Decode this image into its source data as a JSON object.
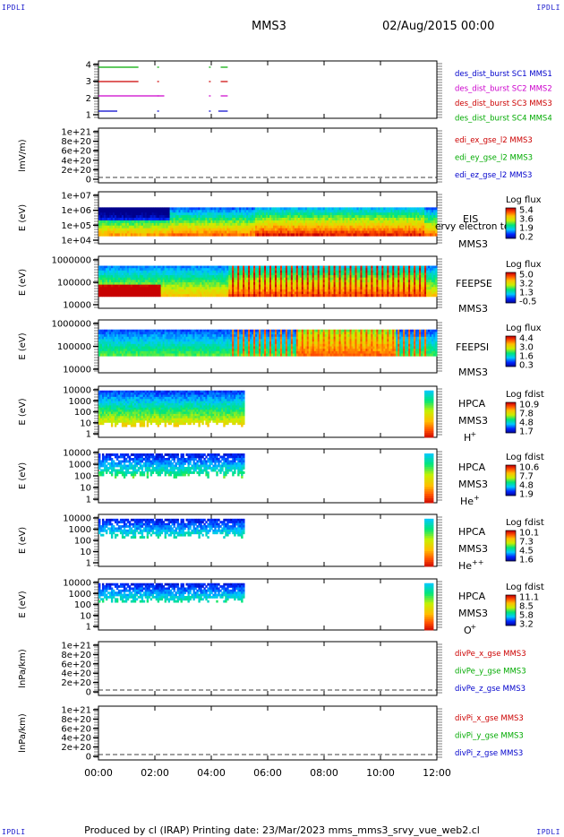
{
  "header": {
    "corner_label": "IPDLI",
    "spacecraft": "MMS3",
    "date": "02/Aug/2015 00:00"
  },
  "footer": {
    "text": "Produced by cl (IRAP)   Printing date: 23/Mar/2023   mms_mms3_srvy_vue_web2.cl"
  },
  "x_axis": {
    "ticks": [
      "00:00",
      "02:00",
      "04:00",
      "06:00",
      "08:00",
      "10:00",
      "12:00"
    ]
  },
  "panels": [
    {
      "id": "burst",
      "yticks": [
        "4",
        "3",
        "2",
        "1"
      ],
      "labels": [
        {
          "text": "des_dist_burst SC1 MMS1",
          "color": "#0000cc"
        },
        {
          "text": "des_dist_burst SC2 MMS2",
          "color": "#cc00cc"
        },
        {
          "text": "des_dist_burst SC3 MMS3",
          "color": "#cc0000"
        },
        {
          "text": "des_dist_burst SC4 MMS4",
          "color": "#00aa00"
        }
      ]
    },
    {
      "id": "efield",
      "ylabel": "lmV/m)",
      "yticks": [
        "1e+21",
        "8e+20",
        "6e+20",
        "4e+20",
        "2e+20",
        "0"
      ],
      "labels": [
        {
          "text": "edi_ex_gse_l2 MMS3",
          "color": "#cc0000"
        },
        {
          "text": "edi_ey_gse_l2 MMS3",
          "color": "#00aa00"
        },
        {
          "text": "edi_ez_gse_l2 MMS3",
          "color": "#0000cc"
        }
      ]
    },
    {
      "id": "eis",
      "ylabel": "E (eV)",
      "yticks": [
        "1e+07",
        "1e+06",
        "1e+05",
        "1e+04"
      ],
      "instrument": "EIS",
      "extra": "ervy electron tot",
      "sc": "MMS3",
      "cb_title": "Log flux",
      "cb_ticks": [
        "5.4",
        "3.6",
        "1.9",
        "0.2"
      ]
    },
    {
      "id": "feepse",
      "ylabel": "E (eV)",
      "yticks": [
        "1000000",
        "100000",
        "10000"
      ],
      "instrument": "FEEPSE",
      "sc": "MMS3",
      "cb_title": "Log flux",
      "cb_ticks": [
        "5.0",
        "3.2",
        "1.3",
        "-0.5"
      ]
    },
    {
      "id": "feepsi",
      "ylabel": "E (eV)",
      "yticks": [
        "1000000",
        "100000",
        "10000"
      ],
      "instrument": "FEEPSI",
      "sc": "MMS3",
      "cb_title": "Log flux",
      "cb_ticks": [
        "4.4",
        "3.0",
        "1.6",
        "0.3"
      ]
    },
    {
      "id": "hpca_h",
      "ylabel": "E (eV)",
      "yticks": [
        "10000",
        "1000",
        "100",
        "10",
        "1"
      ],
      "instrument": "HPCA",
      "sc": "MMS3",
      "species": "H",
      "charge": "+",
      "cb_title": "Log fdist",
      "cb_ticks": [
        "10.9",
        "7.8",
        "4.8",
        "1.7"
      ]
    },
    {
      "id": "hpca_he",
      "ylabel": "E (eV)",
      "yticks": [
        "10000",
        "1000",
        "100",
        "10",
        "1"
      ],
      "instrument": "HPCA",
      "sc": "MMS3",
      "species": "He",
      "charge": "+",
      "cb_title": "Log fdist",
      "cb_ticks": [
        "10.6",
        "7.7",
        "4.8",
        "1.9"
      ]
    },
    {
      "id": "hpca_hepp",
      "ylabel": "E (eV)",
      "yticks": [
        "10000",
        "1000",
        "100",
        "10",
        "1"
      ],
      "instrument": "HPCA",
      "sc": "MMS3",
      "species": "He",
      "charge": "++",
      "cb_title": "Log fdist",
      "cb_ticks": [
        "10.1",
        "7.3",
        "4.5",
        "1.6"
      ]
    },
    {
      "id": "hpca_o",
      "ylabel": "E (eV)",
      "yticks": [
        "10000",
        "1000",
        "100",
        "10",
        "1"
      ],
      "instrument": "HPCA",
      "sc": "MMS3",
      "species": "O",
      "charge": "+",
      "cb_title": "Log fdist",
      "cb_ticks": [
        "11.1",
        "8.5",
        "5.8",
        "3.2"
      ]
    },
    {
      "id": "divpe",
      "ylabel": "lnPa/km)",
      "yticks": [
        "1e+21",
        "8e+20",
        "6e+20",
        "4e+20",
        "2e+20",
        "0"
      ],
      "labels": [
        {
          "text": "divPe_x_gse MMS3",
          "color": "#cc0000"
        },
        {
          "text": "divPe_y_gse MMS3",
          "color": "#00aa00"
        },
        {
          "text": "divPe_z_gse MMS3",
          "color": "#0000cc"
        }
      ]
    },
    {
      "id": "divpi",
      "ylabel": "lnPa/km)",
      "yticks": [
        "1e+21",
        "8e+20",
        "6e+20",
        "4e+20",
        "2e+20",
        "0"
      ],
      "labels": [
        {
          "text": "divPi_x_gse MMS3",
          "color": "#cc0000"
        },
        {
          "text": "divPi_y_gse MMS3",
          "color": "#00aa00"
        },
        {
          "text": "divPi_z_gse MMS3",
          "color": "#0000cc"
        }
      ]
    }
  ],
  "chart_data": {
    "type": "heatmap",
    "title": "MMS3",
    "x_range": [
      "00:00",
      "12:00"
    ],
    "x_ticks": [
      "00:00",
      "02:00",
      "04:00",
      "06:00",
      "08:00",
      "10:00",
      "12:00"
    ],
    "burst_intervals": [
      {
        "sc": 1,
        "color": "#0000cc",
        "segments": [
          [
            "00:00",
            "00:40"
          ],
          [
            "02:05",
            "02:07"
          ],
          [
            "03:55",
            "03:57"
          ],
          [
            "04:15",
            "04:35"
          ]
        ]
      },
      {
        "sc": 2,
        "color": "#cc00cc",
        "segments": [
          [
            "00:00",
            "02:20"
          ],
          [
            "02:05",
            "02:07"
          ],
          [
            "03:55",
            "03:57"
          ],
          [
            "04:20",
            "04:35"
          ]
        ]
      },
      {
        "sc": 3,
        "color": "#cc0000",
        "segments": [
          [
            "00:00",
            "01:25"
          ],
          [
            "02:05",
            "02:07"
          ],
          [
            "03:55",
            "03:57"
          ],
          [
            "04:20",
            "04:35"
          ]
        ]
      },
      {
        "sc": 4,
        "color": "#00aa00",
        "segments": [
          [
            "00:00",
            "01:25"
          ],
          [
            "02:05",
            "02:07"
          ],
          [
            "03:55",
            "03:57"
          ],
          [
            "04:20",
            "04:35"
          ]
        ]
      }
    ],
    "hpca_coverage": [
      [
        "00:00",
        "05:10"
      ],
      [
        "11:30",
        "12:00"
      ]
    ],
    "efield_values": "all 0 (dashed zero line)",
    "divp_values": "all 0 (dashed zero line)",
    "colormap": "rainbow (blue low, red high)"
  }
}
